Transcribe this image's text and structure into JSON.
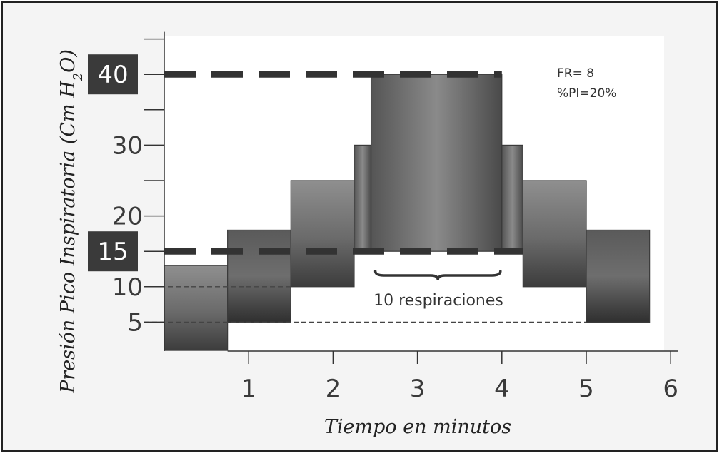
{
  "chart_data": {
    "type": "bar",
    "xlabel": "Tiempo en minutos",
    "ylabel_parts": [
      "Presión Pico Inspiratoria (Cm H",
      "2",
      "O)"
    ],
    "x_ticks": [
      "1",
      "2",
      "3",
      "4",
      "5",
      "6"
    ],
    "x_tick_values": [
      1,
      2,
      3,
      4,
      5,
      6
    ],
    "y_ticks": [
      "5",
      "10",
      "20",
      "30"
    ],
    "y_tick_values": [
      5,
      10,
      20,
      30
    ],
    "y_minor_ticks": [
      15,
      25,
      35,
      40,
      45
    ],
    "xlim": [
      -0.2,
      6.0
    ],
    "ylim": [
      0,
      46
    ],
    "steps": [
      {
        "x0": 0.0,
        "x1": 0.75,
        "y0": 1,
        "y1": 13
      },
      {
        "x0": 0.75,
        "x1": 1.5,
        "y0": 5,
        "y1": 18
      },
      {
        "x0": 1.5,
        "x1": 2.25,
        "y0": 10,
        "y1": 25
      },
      {
        "x0": 2.25,
        "x1": 2.45,
        "y0": 15,
        "y1": 30
      },
      {
        "x0": 2.45,
        "x1": 4.0,
        "y0": 15,
        "y1": 40
      },
      {
        "x0": 4.0,
        "x1": 4.25,
        "y0": 15,
        "y1": 30
      },
      {
        "x0": 4.25,
        "x1": 5.0,
        "y0": 10,
        "y1": 25
      },
      {
        "x0": 5.0,
        "x1": 5.75,
        "y0": 5,
        "y1": 18
      }
    ],
    "threshold_lines": [
      {
        "value": 40,
        "label": "40",
        "x_end": 4.0
      },
      {
        "value": 15,
        "label": "15",
        "x_end": 4.25
      }
    ],
    "reference_lines": [
      {
        "value": 10,
        "x_end": 1.5
      },
      {
        "value": 5,
        "x_end": 5.0
      }
    ],
    "annotations": {
      "params": [
        "FR= 8",
        "%PI=20%"
      ],
      "brace_label": "10 respiraciones",
      "brace_x": [
        2.45,
        4.0
      ],
      "brace_y": 12
    }
  }
}
